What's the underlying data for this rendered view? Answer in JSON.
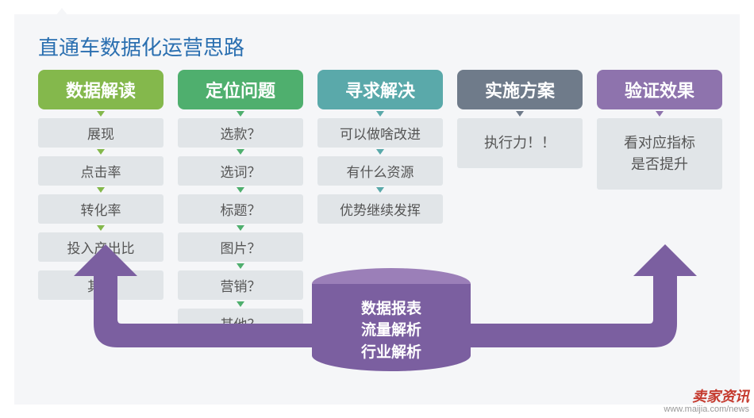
{
  "title": "直通车数据化运营思路",
  "columns": [
    {
      "header": "数据解读",
      "header_color": "#84b84c",
      "arrow_color": "#84b84c",
      "items": [
        "展现",
        "点击率",
        "转化率",
        "投入产出比",
        "其他"
      ]
    },
    {
      "header": "定位问题",
      "header_color": "#4faf6e",
      "arrow_color": "#4faf6e",
      "items": [
        "选款？",
        "选词？",
        "标题？",
        "图片？",
        "营销？",
        "其他？"
      ]
    },
    {
      "header": "寻求解决",
      "header_color": "#5aa9aa",
      "arrow_color": "#5aa9aa",
      "items": [
        "可以做啥改进",
        "有什么资源",
        "优势继续发挥"
      ]
    },
    {
      "header": "实施方案",
      "header_color": "#6f7b8a",
      "arrow_color": "#6f7b8a",
      "big_item": "执行力！！"
    },
    {
      "header": "验证效果",
      "header_color": "#8e73ad",
      "arrow_color": "#8e73ad",
      "big_item": "看对应指标\n是否提升"
    }
  ],
  "cylinder": {
    "lines": [
      "数据报表",
      "流量解析",
      "行业解析"
    ],
    "top_color": "#9b7fb8",
    "body_color": "#7b5fa0"
  },
  "flow_arrow_color": "#7b5fa0",
  "watermark": {
    "main": "卖家资讯",
    "sub": "www.maijia.com/news"
  },
  "background": "#f5f6f8",
  "item_bg": "#e1e5e8"
}
